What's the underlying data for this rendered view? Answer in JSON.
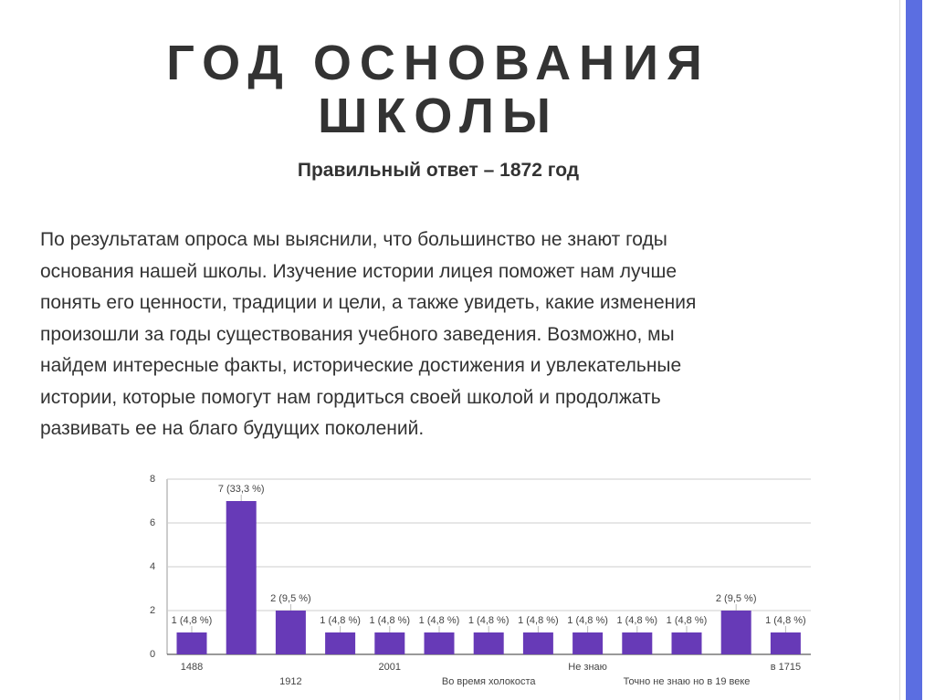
{
  "title": [
    "ГОД ОСНОВАНИЯ",
    "ШКОЛЫ"
  ],
  "subtitle": "Правильный ответ – 1872 год",
  "paragraph": [
    "По результатам опроса мы выяснили, что большинство не знают годы",
    "основания нашей школы. Изучение истории лицея поможет нам лучше",
    "понять его ценности, традиции и цели, а также увидеть, какие изменения",
    "произошли за годы существования учебного заведения. Возможно, мы",
    "найдем интересные факты, исторические достижения и увлекательные",
    "истории, которые помогут нам гордиться своей школой и продолжать",
    "развивать ее на благо будущих поколений."
  ],
  "chart_data": {
    "type": "bar",
    "categories": [
      "1488",
      null,
      "1912",
      null,
      "2001",
      null,
      "Во время холокоста",
      null,
      "Не знаю",
      null,
      "Точно не знаю но в 19 веке",
      null,
      "в 1715"
    ],
    "values": [
      1,
      7,
      2,
      1,
      1,
      1,
      1,
      1,
      1,
      1,
      1,
      2,
      1
    ],
    "value_labels": [
      "1 (4,8 %)",
      "7 (33,3 %)",
      "2 (9,5 %)",
      "1 (4,8 %)",
      "1 (4,8 %)",
      "1 (4,8 %)",
      "1 (4,8 %)",
      "1 (4,8 %)",
      "1 (4,8 %)",
      "1 (4,8 %)",
      "1 (4,8 %)",
      "2 (9,5 %)",
      "1 (4,8 %)"
    ],
    "color": "#673ab7",
    "ylim": [
      0,
      8
    ],
    "yticks": [
      0,
      2,
      4,
      6,
      8
    ],
    "grid": true
  }
}
